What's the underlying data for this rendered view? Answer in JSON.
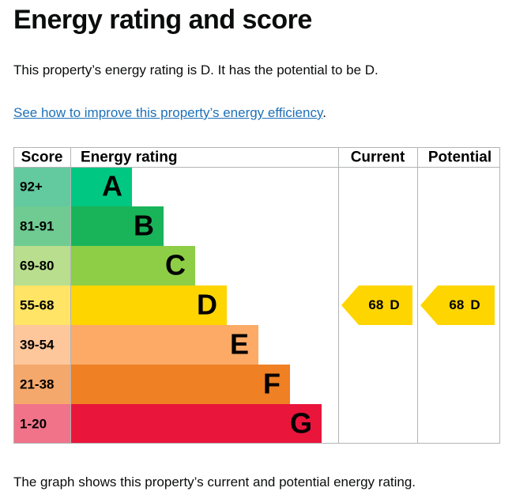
{
  "title": "Energy rating and score",
  "intro": "This property’s energy rating is D. It has the potential to be D.",
  "link": "See how to improve this property’s energy efficiency",
  "link_end": ".",
  "epc": {
    "headers": [
      "Score",
      "Energy rating",
      "Current",
      "Potential"
    ],
    "bands": [
      {
        "score": "92+",
        "letter": "A",
        "color": "#00c781",
        "score_color": "#63c99f"
      },
      {
        "score": "81-91",
        "letter": "B",
        "color": "#19b459",
        "score_color": "#6fcb91"
      },
      {
        "score": "69-80",
        "letter": "C",
        "color": "#8dce46",
        "score_color": "#b8de8e"
      },
      {
        "score": "55-68",
        "letter": "D",
        "color": "#ffd500",
        "score_color": "#ffe466"
      },
      {
        "score": "39-54",
        "letter": "E",
        "color": "#fcaa65",
        "score_color": "#fdc79b"
      },
      {
        "score": "21-38",
        "letter": "F",
        "color": "#ef8023",
        "score_color": "#f4a86b"
      },
      {
        "score": "1-20",
        "letter": "G",
        "color": "#e9153b",
        "score_color": "#f07389"
      }
    ],
    "current": {
      "value": 68,
      "letter": "D"
    },
    "potential": {
      "value": 68,
      "letter": "D"
    }
  },
  "footer": "The graph shows this property’s current and potential energy rating."
}
